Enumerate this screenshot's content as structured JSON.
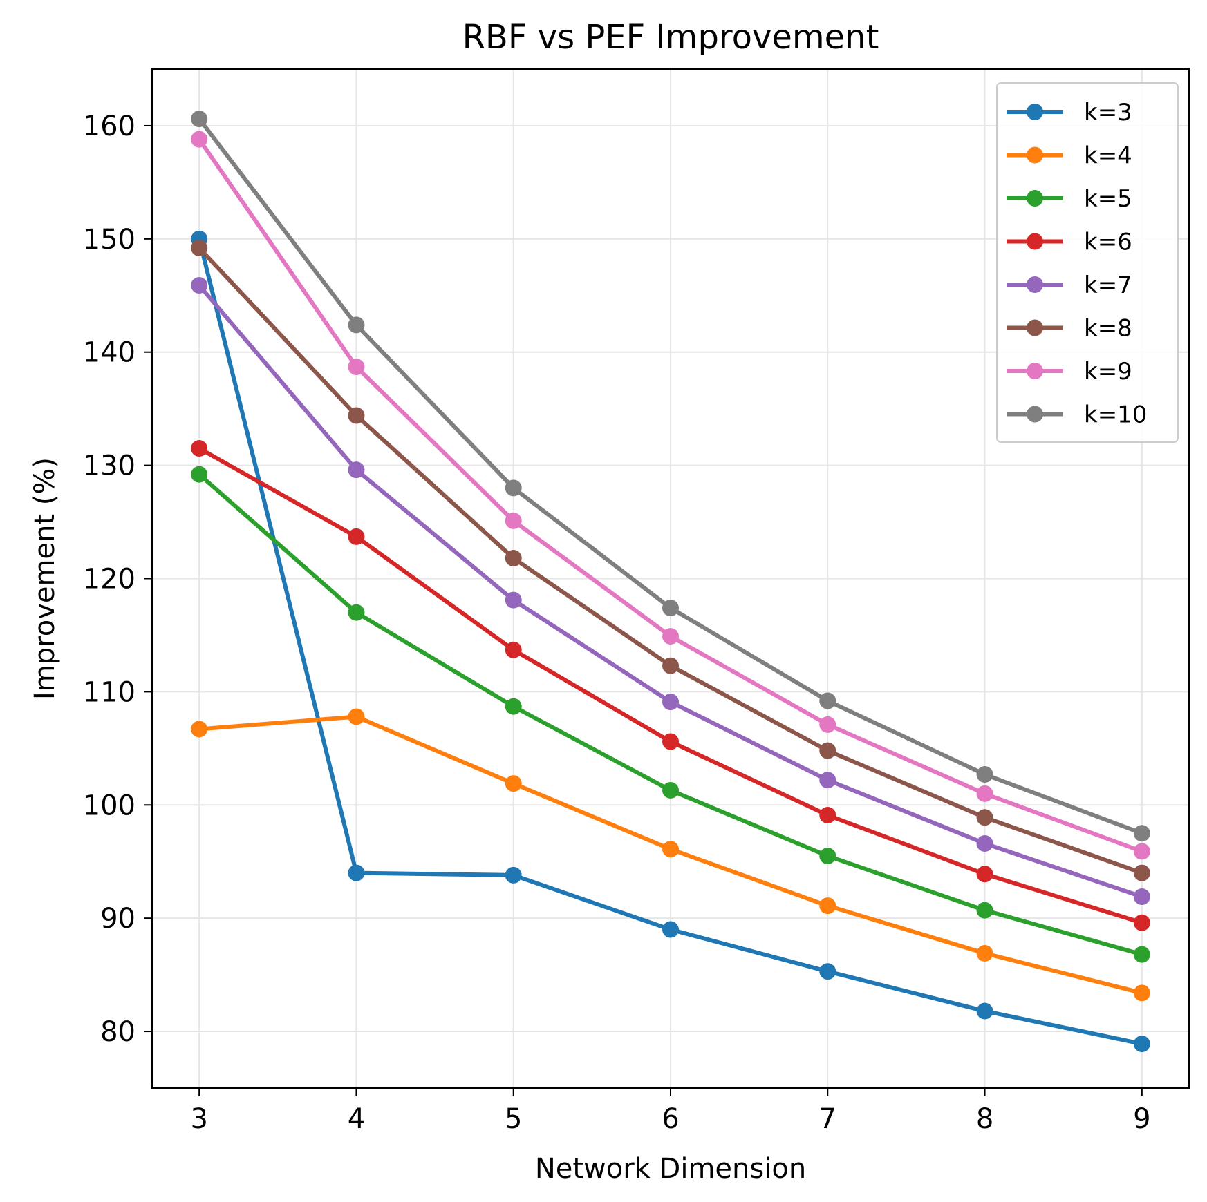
{
  "chart_data": {
    "type": "line",
    "title": "RBF vs PEF Improvement",
    "xlabel": "Network Dimension",
    "ylabel": "Improvement (%)",
    "x": [
      3,
      4,
      5,
      6,
      7,
      8,
      9
    ],
    "xlim": [
      2.7,
      9.3
    ],
    "ylim": [
      75,
      165
    ],
    "xticks": [
      3,
      4,
      5,
      6,
      7,
      8,
      9
    ],
    "yticks": [
      80,
      90,
      100,
      110,
      120,
      130,
      140,
      150,
      160
    ],
    "grid": true,
    "legend_position": "top-right",
    "marker": "circle",
    "series": [
      {
        "name": "k=3",
        "color": "#1f77b4",
        "values": [
          150.0,
          94.0,
          93.8,
          89.0,
          85.3,
          81.8,
          78.9
        ]
      },
      {
        "name": "k=4",
        "color": "#ff7f0e",
        "values": [
          106.7,
          107.8,
          101.9,
          96.1,
          91.1,
          86.9,
          83.4
        ]
      },
      {
        "name": "k=5",
        "color": "#2ca02c",
        "values": [
          129.2,
          117.0,
          108.7,
          101.3,
          95.5,
          90.7,
          86.8
        ]
      },
      {
        "name": "k=6",
        "color": "#d62728",
        "values": [
          131.5,
          123.7,
          113.7,
          105.6,
          99.1,
          93.9,
          89.6
        ]
      },
      {
        "name": "k=7",
        "color": "#9467bd",
        "values": [
          145.9,
          129.6,
          118.1,
          109.1,
          102.2,
          96.6,
          91.9
        ]
      },
      {
        "name": "k=8",
        "color": "#8c564b",
        "values": [
          149.2,
          134.4,
          121.8,
          112.3,
          104.8,
          98.9,
          94.0
        ]
      },
      {
        "name": "k=9",
        "color": "#e377c2",
        "values": [
          158.8,
          138.7,
          125.1,
          114.9,
          107.1,
          101.0,
          95.9
        ]
      },
      {
        "name": "k=10",
        "color": "#7f7f7f",
        "values": [
          160.6,
          142.4,
          128.0,
          117.4,
          109.2,
          102.7,
          97.5
        ]
      }
    ]
  }
}
